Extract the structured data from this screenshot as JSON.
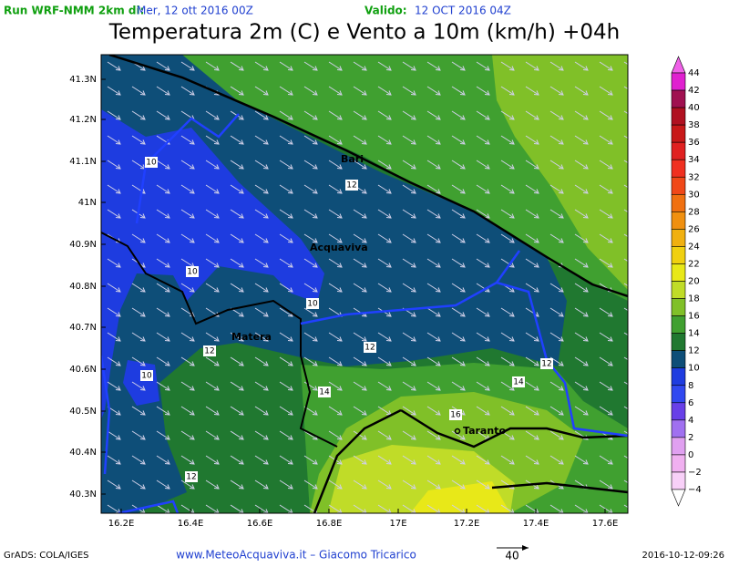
{
  "header": {
    "run": "Run WRF-NMM 2km di:",
    "run_date": "Mer, 12 ott 2016 00Z",
    "valid": "Valido:",
    "valid_date": "12 OCT 2016 04Z",
    "title": "Temperatura 2m (C) e Vento a 10m (km/h) +04h"
  },
  "map": {
    "lat_labels": [
      "41.3N",
      "41.2N",
      "41.1N",
      "41N",
      "40.9N",
      "40.8N",
      "40.7N",
      "40.6N",
      "40.5N",
      "40.4N",
      "40.3N"
    ],
    "lon_labels": [
      "16.2E",
      "16.4E",
      "16.6E",
      "16.8E",
      "17E",
      "17.2E",
      "17.4E",
      "17.6E"
    ],
    "contour_labels": [
      "10",
      "10",
      "10",
      "10",
      "12",
      "12",
      "12",
      "12",
      "12",
      "14",
      "14",
      "16"
    ],
    "places": [
      "Bari",
      "Acquaviva",
      "Matera",
      "Taranto"
    ]
  },
  "colorbar": {
    "ticks": [
      44,
      42,
      40,
      38,
      36,
      34,
      32,
      30,
      28,
      26,
      24,
      22,
      20,
      18,
      16,
      14,
      12,
      10,
      8,
      6,
      4,
      2,
      0,
      {
        "value": -2,
        "label": "−2"
      },
      {
        "value": -4,
        "label": "−4"
      }
    ],
    "colors": [
      "#f060e8",
      "#e020d0",
      "#a01050",
      "#b01020",
      "#c81818",
      "#e02020",
      "#f03020",
      "#f04818",
      "#f07010",
      "#f09010",
      "#f0b010",
      "#f0d010",
      "#e8e818",
      "#c0dc28",
      "#80c028",
      "#40a030",
      "#207830",
      "#0e4e78",
      "#1e3ce0",
      "#3048f0",
      "#6840e8",
      "#a070f0",
      "#e0a0f0",
      "#f0b0f0",
      "#f8d0f8",
      "#ffffff"
    ]
  },
  "footer": {
    "credit": "GrADS: COLA/IGES",
    "site": "www.MeteoAcquaviva.it  –  Giacomo Tricarico",
    "scale": "40",
    "timestamp": "2016-10-12-09:26"
  }
}
